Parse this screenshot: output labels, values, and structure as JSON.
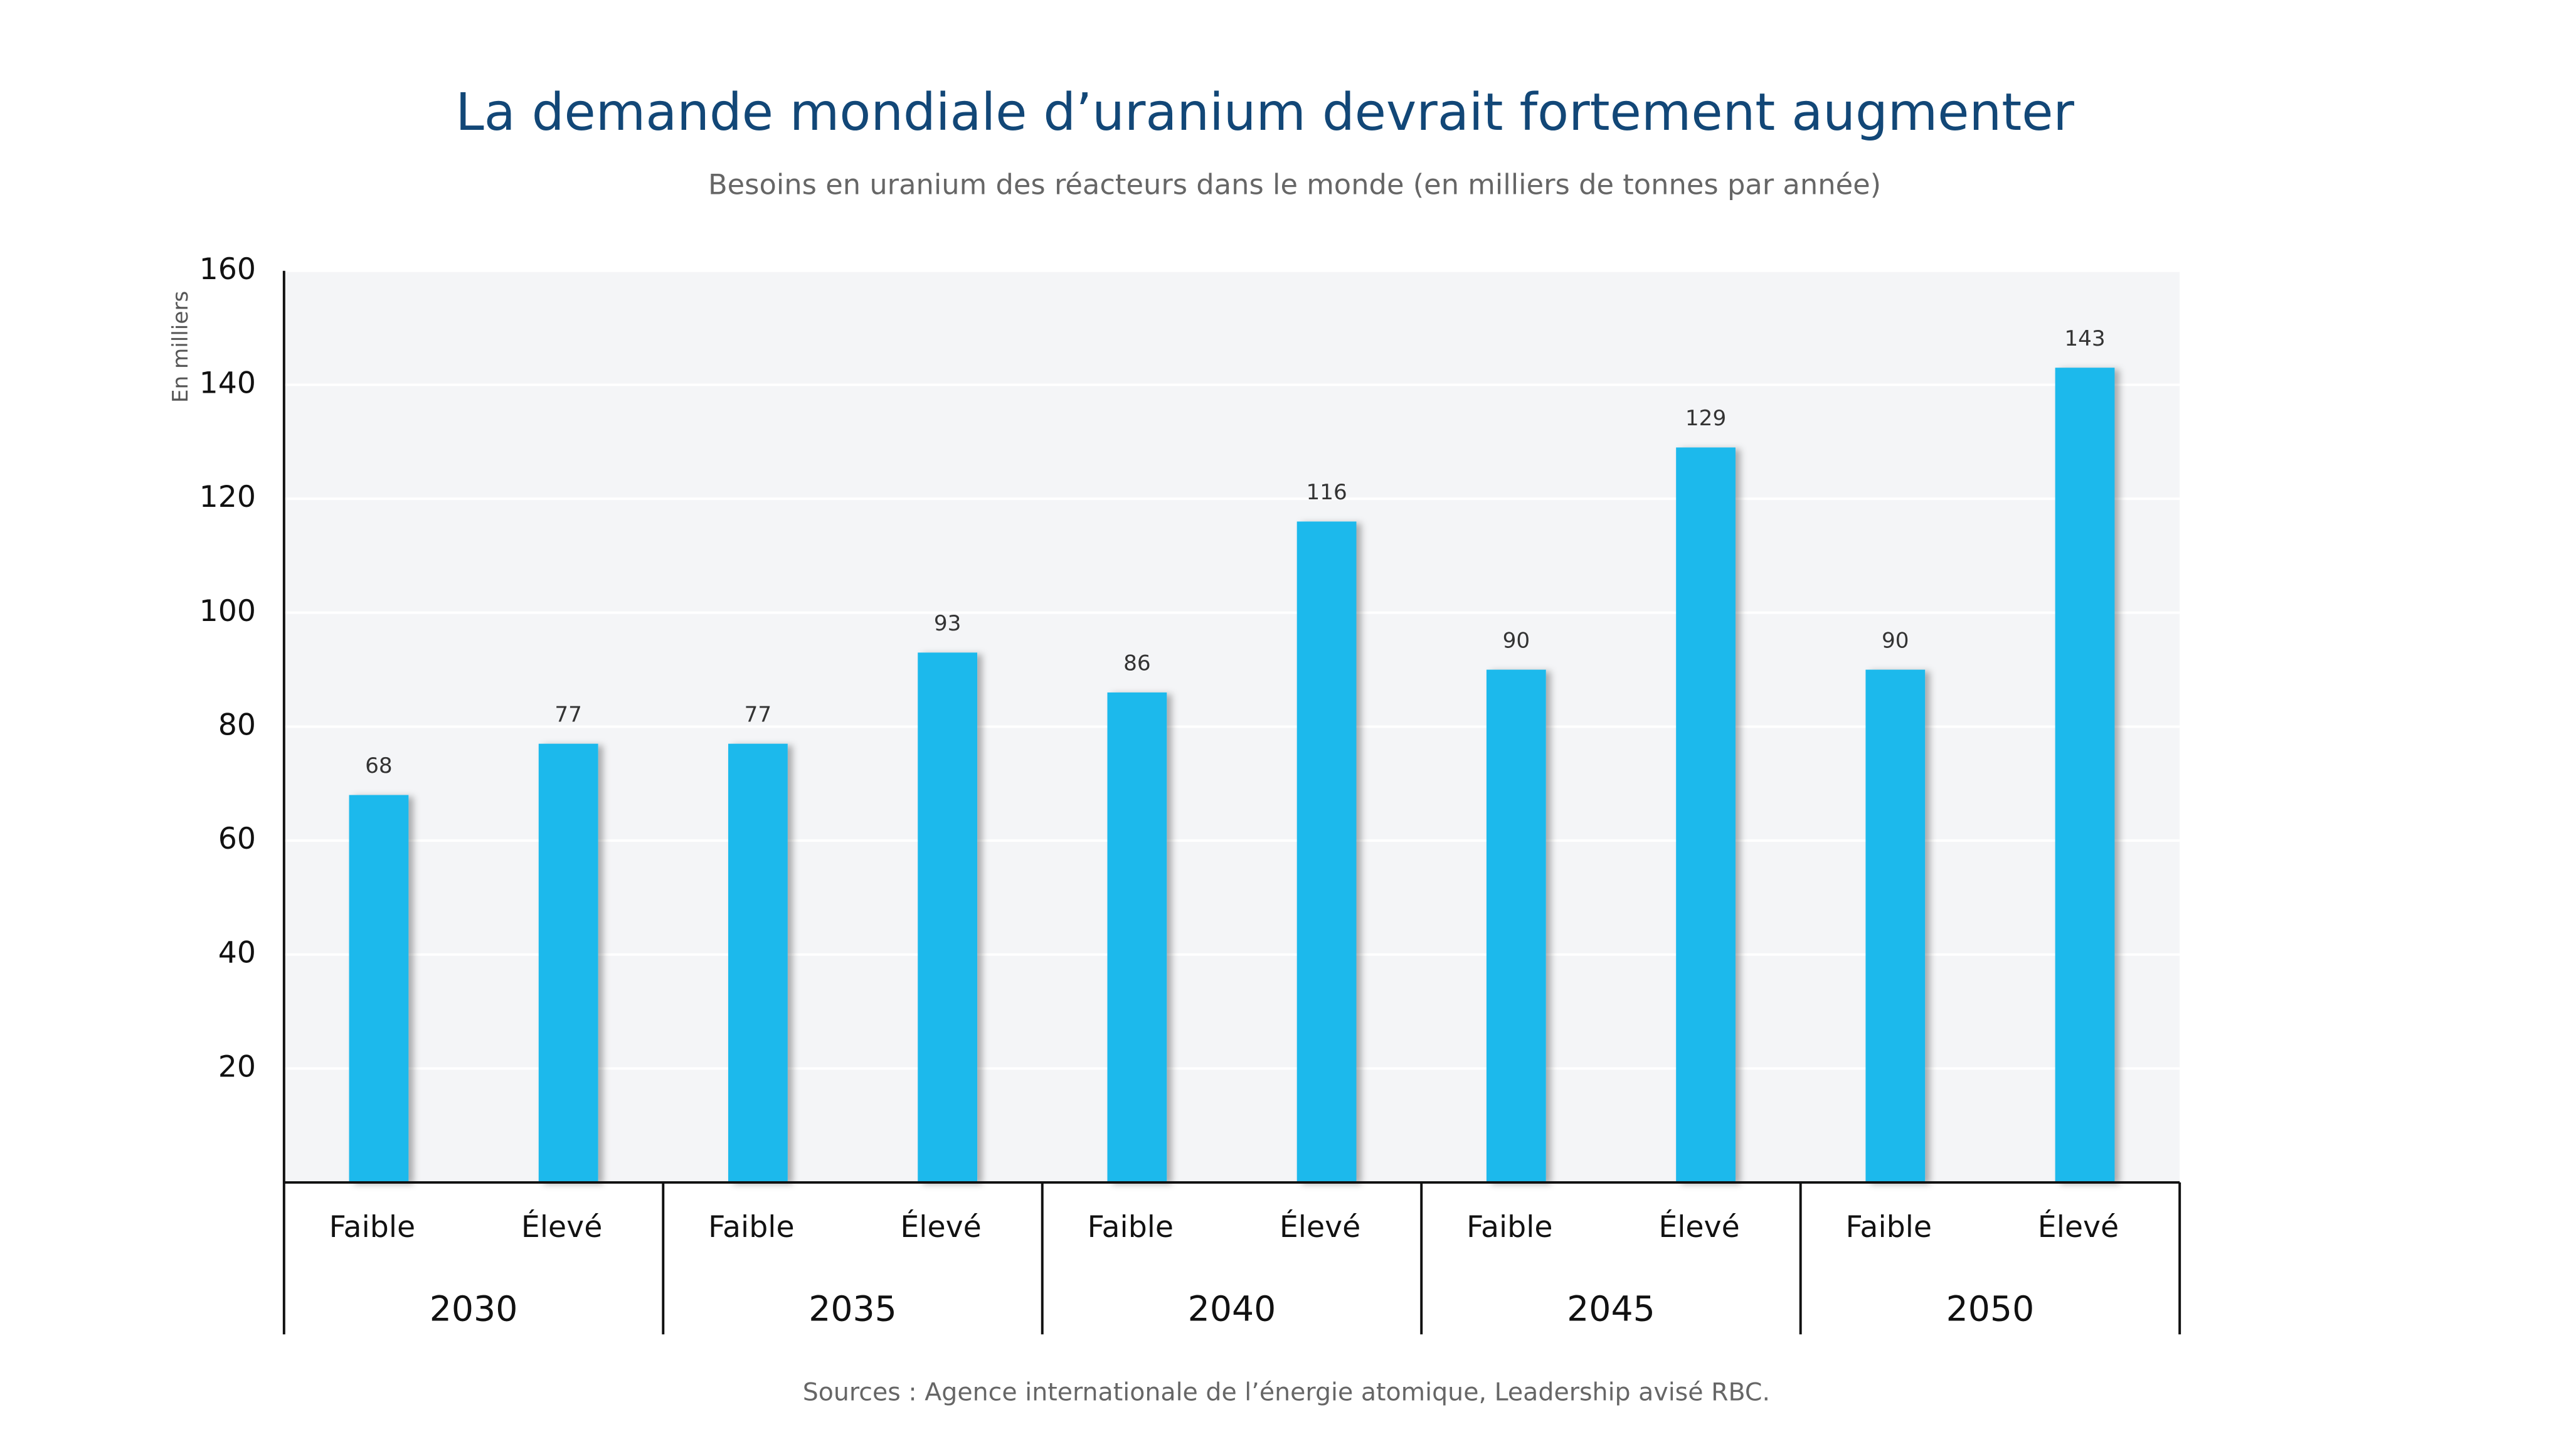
{
  "chart_data": {
    "type": "bar",
    "title": "La demande mondiale d’uranium devrait fortement augmenter",
    "subtitle": "Besoins en uranium des réacteurs dans le monde (en milliers de tonnes par année)",
    "y_label": "En milliers",
    "source": "Sources : Agence internationale de l’énergie atomique, Leadership avisé RBC.",
    "categories": [
      "Faible",
      "Élevé",
      "Faible",
      "Élevé",
      "Faible",
      "Élevé",
      "Faible",
      "Élevé",
      "Faible",
      "Élevé"
    ],
    "groups": [
      "2030",
      "2035",
      "2040",
      "2045",
      "2050"
    ],
    "values": [
      68,
      77,
      77,
      93,
      86,
      116,
      90,
      129,
      90,
      143
    ],
    "color": "#1fb9ec",
    "ylim": [
      0,
      160
    ],
    "yticks": [
      20,
      40,
      60,
      80,
      100,
      120,
      140,
      160
    ],
    "grid": true
  }
}
